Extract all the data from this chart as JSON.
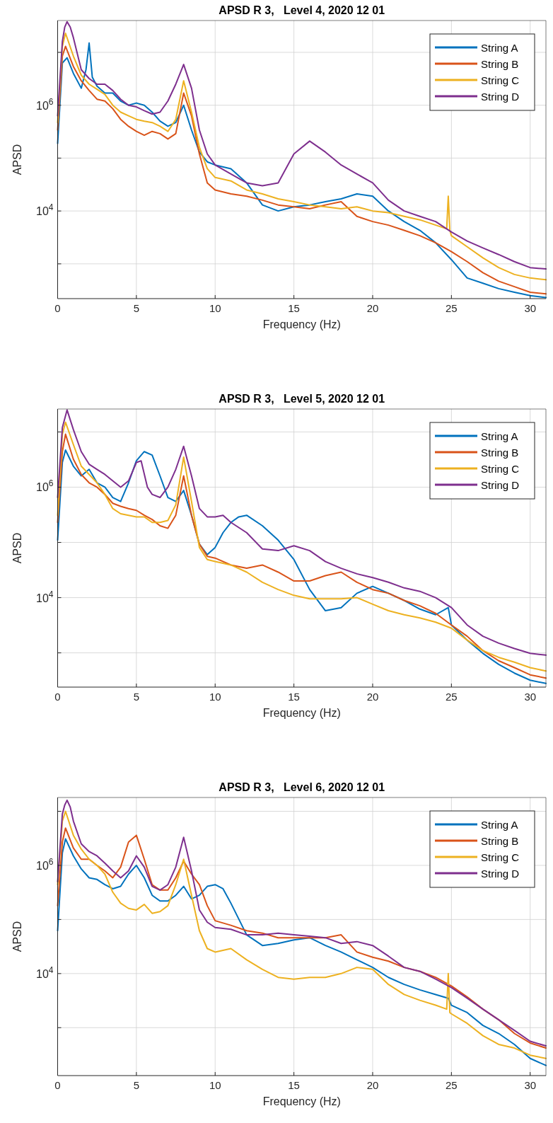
{
  "chart_data": [
    {
      "type": "line",
      "title": "APSD R 3,   Level 4, 2020 12 01",
      "xlabel": "Frequency (Hz)",
      "ylabel": "APSD",
      "log": "y",
      "grid": true,
      "legend": "top right",
      "xlim": [
        0,
        31
      ],
      "ylim": [
        220,
        40000000
      ],
      "xticks": [
        0,
        5,
        10,
        15,
        20,
        25,
        30
      ],
      "yticks": [
        {
          "value": 1000,
          "label": null
        },
        {
          "value": 10000,
          "label": "10$^{4}$"
        },
        {
          "value": 100000,
          "label": null
        },
        {
          "value": 1000000,
          "label": "10$^{6}$"
        },
        {
          "value": 10000000,
          "label": null
        }
      ],
      "series": [
        {
          "name": "String A",
          "color": "#0072bd",
          "x": [
            0,
            0.3,
            0.6,
            1,
            1.5,
            1.8,
            2,
            2.2,
            2.5,
            3,
            3.5,
            4,
            4.5,
            5,
            5.5,
            6,
            6.5,
            7,
            7.5,
            8,
            8.5,
            9,
            9.5,
            10,
            11,
            12,
            13,
            14,
            15,
            16,
            17,
            18,
            19,
            20,
            21,
            22,
            23,
            24,
            25,
            26,
            27,
            28,
            29,
            30,
            31
          ],
          "values": [
            190000,
            6300000,
            7900000,
            4000000,
            2100000,
            4700000,
            15000000,
            3400000,
            2300000,
            1700000,
            1700000,
            1200000,
            1000000,
            1100000,
            1000000,
            740000,
            500000,
            400000,
            470000,
            1000000,
            340000,
            130000,
            85000,
            74000,
            63000,
            34000,
            13000,
            10000,
            12000,
            13000,
            15000,
            17000,
            21000,
            19000,
            10000,
            6300,
            4300,
            2500,
            1200,
            540,
            430,
            340,
            290,
            250,
            230
          ]
        },
        {
          "name": "String B",
          "color": "#d95319",
          "x": [
            0,
            0.3,
            0.5,
            1,
            1.5,
            2,
            2.5,
            3,
            3.5,
            4,
            4.5,
            5,
            5.5,
            6,
            6.5,
            7,
            7.5,
            8,
            8.5,
            9,
            9.5,
            10,
            11,
            12,
            13,
            14,
            15,
            16,
            17,
            18,
            19,
            20,
            21,
            22,
            23,
            24,
            25,
            26,
            27,
            28,
            29,
            30,
            31
          ],
          "values": [
            340000,
            8500000,
            13000000,
            5400000,
            2900000,
            1900000,
            1300000,
            1200000,
            860000,
            540000,
            400000,
            320000,
            270000,
            320000,
            290000,
            230000,
            290000,
            1700000,
            630000,
            120000,
            34000,
            25000,
            21000,
            19000,
            16000,
            13000,
            12000,
            11000,
            13000,
            15000,
            7900,
            6300,
            5400,
            4300,
            3400,
            2500,
            1700,
            1100,
            680,
            470,
            370,
            290,
            270
          ]
        },
        {
          "name": "String C",
          "color": "#edb120",
          "x": [
            0,
            0.3,
            0.5,
            1,
            1.5,
            2,
            2.5,
            3,
            3.5,
            4,
            4.5,
            5,
            5.5,
            6,
            6.5,
            7,
            7.5,
            8,
            8.5,
            9,
            9.5,
            10,
            11,
            12,
            13,
            14,
            15,
            16,
            17,
            18,
            19,
            20,
            21,
            22,
            23,
            24,
            24.7,
            24.8,
            24.9,
            25,
            26,
            27,
            28,
            29,
            30,
            31
          ],
          "values": [
            470000,
            13000000,
            23000000,
            8500000,
            3700000,
            2500000,
            2000000,
            1600000,
            1000000,
            740000,
            630000,
            540000,
            500000,
            470000,
            400000,
            320000,
            540000,
            2900000,
            740000,
            160000,
            63000,
            43000,
            37000,
            25000,
            21000,
            17000,
            15000,
            13000,
            12000,
            11000,
            12000,
            10000,
            9300,
            7900,
            6800,
            5400,
            4600,
            19000,
            4300,
            3400,
            2100,
            1300,
            850,
            630,
            540,
            500
          ]
        },
        {
          "name": "String D",
          "color": "#7e2f8e",
          "x": [
            0,
            0.3,
            0.45,
            0.6,
            0.8,
            1,
            1.5,
            2,
            2.5,
            3,
            3.5,
            4,
            4.5,
            5,
            5.5,
            6,
            6.5,
            7,
            7.5,
            8,
            8.5,
            9,
            9.5,
            10,
            11,
            12,
            13,
            14,
            15,
            16,
            17,
            18,
            19,
            20,
            21,
            22,
            23,
            24,
            25,
            26,
            27,
            28,
            29,
            30,
            31
          ],
          "values": [
            630000,
            16000000,
            30000000,
            38000000,
            30000000,
            19000000,
            4700000,
            3200000,
            2500000,
            2500000,
            1900000,
            1300000,
            1000000,
            930000,
            790000,
            680000,
            740000,
            1200000,
            2500000,
            5900000,
            2100000,
            340000,
            120000,
            74000,
            50000,
            34000,
            30000,
            34000,
            120000,
            210000,
            130000,
            74000,
            50000,
            34000,
            16000,
            10000,
            7900,
            6300,
            4000,
            2700,
            2000,
            1500,
            1100,
            850,
            800
          ]
        }
      ]
    },
    {
      "type": "line",
      "title": "APSD R 3,   Level 5, 2020 12 01",
      "xlabel": "Frequency (Hz)",
      "ylabel": "APSD",
      "log": "y",
      "grid": true,
      "legend": "top right",
      "xlim": [
        0,
        31
      ],
      "ylim": [
        240,
        26000000
      ],
      "xticks": [
        0,
        5,
        10,
        15,
        20,
        25,
        30
      ],
      "yticks": [
        {
          "value": 1000,
          "label": null
        },
        {
          "value": 10000,
          "label": "10$^{4}$"
        },
        {
          "value": 100000,
          "label": null
        },
        {
          "value": 1000000,
          "label": "10$^{6}$"
        },
        {
          "value": 10000000,
          "label": null
        }
      ],
      "series": [
        {
          "name": "String A",
          "color": "#0072bd",
          "x": [
            0,
            0.3,
            0.5,
            1,
            1.5,
            2,
            2.5,
            3,
            3.5,
            4,
            4.5,
            5,
            5.5,
            6,
            6.5,
            7,
            7.5,
            8,
            8.5,
            9,
            9.5,
            10,
            10.5,
            11,
            11.5,
            12,
            13,
            14,
            15,
            16,
            17,
            18,
            19,
            20,
            21,
            22,
            23,
            24,
            24.8,
            25,
            26,
            27,
            28,
            29,
            30,
            31
          ],
          "values": [
            110000,
            2800000,
            4700000,
            2400000,
            1600000,
            2100000,
            1200000,
            1000000,
            650000,
            550000,
            1200000,
            3000000,
            4400000,
            3800000,
            1600000,
            650000,
            550000,
            870000,
            310000,
            93000,
            60000,
            81000,
            150000,
            230000,
            290000,
            310000,
            200000,
            110000,
            49000,
            14000,
            5800,
            6600,
            12000,
            16000,
            12000,
            8900,
            6200,
            4900,
            6600,
            3200,
            1700,
            980,
            620,
            430,
            320,
            280
          ]
        },
        {
          "name": "String B",
          "color": "#d95319",
          "x": [
            0,
            0.3,
            0.5,
            1,
            1.5,
            2,
            2.5,
            3,
            3.5,
            4,
            4.5,
            5,
            5.5,
            6,
            6.5,
            7,
            7.5,
            8,
            8.5,
            9,
            9.5,
            10,
            11,
            12,
            13,
            14,
            15,
            16,
            17,
            18,
            19,
            20,
            21,
            22,
            23,
            24,
            25,
            26,
            27,
            28,
            29,
            30,
            31
          ],
          "values": [
            230000,
            4400000,
            9100000,
            3200000,
            1700000,
            1200000,
            1000000,
            740000,
            510000,
            450000,
            410000,
            380000,
            310000,
            260000,
            200000,
            180000,
            310000,
            1600000,
            310000,
            93000,
            56000,
            52000,
            39000,
            34000,
            39000,
            29000,
            20000,
            20000,
            25000,
            29000,
            19000,
            14000,
            12000,
            8900,
            7100,
            5200,
            3200,
            2000,
            1100,
            720,
            540,
            400,
            350
          ]
        },
        {
          "name": "String C",
          "color": "#edb120",
          "x": [
            0,
            0.3,
            0.5,
            1,
            1.5,
            2,
            2.5,
            3,
            3.5,
            4,
            4.5,
            5,
            5.5,
            6,
            6.5,
            7,
            7.5,
            8,
            8.5,
            9,
            9.5,
            10,
            11,
            12,
            13,
            14,
            15,
            16,
            17,
            18,
            19,
            20,
            21,
            22,
            23,
            24,
            25,
            26,
            27,
            28,
            29,
            30,
            31
          ],
          "values": [
            310000,
            9100000,
            15000000,
            5900000,
            2400000,
            1700000,
            1200000,
            740000,
            410000,
            330000,
            310000,
            290000,
            290000,
            230000,
            230000,
            250000,
            480000,
            3500000,
            550000,
            81000,
            49000,
            45000,
            39000,
            29000,
            19000,
            14000,
            11000,
            9500,
            9500,
            9500,
            10000,
            7600,
            5800,
            4900,
            4300,
            3600,
            2800,
            1700,
            1100,
            830,
            680,
            540,
            470
          ]
        },
        {
          "name": "String D",
          "color": "#7e2f8e",
          "x": [
            0,
            0.3,
            0.6,
            1,
            1.5,
            2,
            2.5,
            3,
            3.5,
            4,
            4.5,
            5,
            5.3,
            5.7,
            6,
            6.5,
            7,
            7.5,
            8,
            8.5,
            9,
            9.5,
            10,
            10.5,
            11,
            12,
            13,
            14,
            15,
            16,
            17,
            18,
            19,
            20,
            21,
            22,
            23,
            24,
            25,
            26,
            27,
            28,
            29,
            30,
            31
          ],
          "values": [
            650000,
            12000000,
            25000000,
            11000000,
            4400000,
            2600000,
            2100000,
            1700000,
            1300000,
            1000000,
            1300000,
            2800000,
            3000000,
            1000000,
            740000,
            650000,
            1000000,
            2100000,
            5500000,
            1600000,
            410000,
            290000,
            290000,
            310000,
            230000,
            150000,
            76000,
            71000,
            87000,
            71000,
            45000,
            34000,
            27000,
            23000,
            19000,
            15000,
            13000,
            10000,
            6600,
            3200,
            2000,
            1500,
            1200,
            980,
            910
          ]
        }
      ]
    },
    {
      "type": "line",
      "title": "APSD R 3,   Level 6, 2020 12 01",
      "xlabel": "Frequency (Hz)",
      "ylabel": "APSD",
      "log": "y",
      "grid": true,
      "legend": "top right",
      "xlim": [
        0,
        31
      ],
      "ylim": [
        130,
        18000000
      ],
      "xticks": [
        0,
        5,
        10,
        15,
        20,
        25,
        30
      ],
      "yticks": [
        {
          "value": 1000,
          "label": null
        },
        {
          "value": 10000,
          "label": "10$^{4}$"
        },
        {
          "value": 100000,
          "label": null
        },
        {
          "value": 1000000,
          "label": "10$^{6}$"
        },
        {
          "value": 10000000,
          "label": null
        }
      ],
      "series": [
        {
          "name": "String A",
          "color": "#0072bd",
          "x": [
            0,
            0.3,
            0.5,
            1,
            1.5,
            2,
            2.5,
            3,
            3.5,
            4,
            4.5,
            5,
            5.5,
            6,
            6.5,
            7,
            7.5,
            8,
            8.5,
            9,
            9.5,
            10,
            10.5,
            11,
            12,
            13,
            14,
            15,
            16,
            17,
            18,
            19,
            20,
            21,
            22,
            23,
            24,
            24.8,
            25,
            26,
            27,
            28,
            29,
            30,
            31
          ],
          "values": [
            62000,
            1700000,
            3100000,
            1500000,
            860000,
            590000,
            550000,
            440000,
            370000,
            410000,
            690000,
            1000000,
            590000,
            280000,
            220000,
            220000,
            280000,
            410000,
            240000,
            280000,
            410000,
            440000,
            370000,
            200000,
            52000,
            33000,
            36000,
            42000,
            46000,
            33000,
            25000,
            18000,
            13000,
            8500,
            6300,
            5000,
            4100,
            3500,
            2600,
            1900,
            1100,
            780,
            490,
            270,
            200
          ]
        },
        {
          "name": "String B",
          "color": "#d95319",
          "x": [
            0,
            0.3,
            0.5,
            1,
            1.5,
            2,
            2.5,
            3,
            3.5,
            4,
            4.5,
            5,
            5.5,
            6,
            6.5,
            7,
            7.5,
            8,
            8.5,
            9,
            9.5,
            10,
            11,
            12,
            13,
            14,
            15,
            16,
            17,
            18,
            19,
            20,
            21,
            22,
            23,
            24,
            25,
            26,
            27,
            28,
            29,
            30,
            31
          ],
          "values": [
            180000,
            2700000,
            4900000,
            2100000,
            1300000,
            1300000,
            1000000,
            790000,
            590000,
            930000,
            2700000,
            3600000,
            1300000,
            440000,
            350000,
            350000,
            590000,
            1200000,
            690000,
            440000,
            180000,
            95000,
            78000,
            62000,
            56000,
            46000,
            46000,
            46000,
            46000,
            52000,
            25000,
            20000,
            17000,
            13000,
            11000,
            8500,
            5900,
            3700,
            2200,
            1400,
            780,
            520,
            420
          ]
        },
        {
          "name": "String C",
          "color": "#edb120",
          "x": [
            0,
            0.3,
            0.5,
            1,
            1.5,
            2,
            2.5,
            3,
            3.5,
            4,
            4.5,
            5,
            5.5,
            6,
            6.5,
            7,
            7.5,
            8,
            8.5,
            9,
            9.5,
            10,
            11,
            12,
            13,
            14,
            15,
            16,
            17,
            18,
            19,
            20,
            21,
            22,
            23,
            24,
            24.7,
            24.8,
            24.9,
            25,
            26,
            27,
            28,
            29,
            30,
            31
          ],
          "values": [
            440000,
            6600000,
            10000000,
            3600000,
            2000000,
            1300000,
            1000000,
            690000,
            320000,
            200000,
            160000,
            150000,
            190000,
            130000,
            140000,
            180000,
            440000,
            1300000,
            280000,
            62000,
            29000,
            25000,
            29000,
            18000,
            12000,
            8500,
            7900,
            8500,
            8500,
            10000,
            13000,
            12000,
            6300,
            4100,
            3200,
            2600,
            2200,
            10000,
            1900,
            1800,
            1200,
            710,
            490,
            420,
            310,
            270
          ]
        },
        {
          "name": "String D",
          "color": "#7e2f8e",
          "x": [
            0,
            0.3,
            0.45,
            0.6,
            0.8,
            1,
            1.5,
            2,
            2.5,
            3,
            3.5,
            4,
            4.5,
            5,
            5.5,
            6,
            6.5,
            7,
            7.5,
            8,
            8.5,
            9,
            9.5,
            10,
            11,
            12,
            13,
            14,
            15,
            16,
            17,
            18,
            19,
            20,
            21,
            22,
            23,
            24,
            25,
            26,
            27,
            28,
            29,
            30,
            31
          ],
          "values": [
            500000,
            8900000,
            13000000,
            16000000,
            12000000,
            6600000,
            2500000,
            1800000,
            1500000,
            1100000,
            790000,
            590000,
            790000,
            1500000,
            930000,
            410000,
            350000,
            440000,
            930000,
            3300000,
            790000,
            150000,
            89000,
            71000,
            66000,
            52000,
            52000,
            56000,
            52000,
            49000,
            46000,
            36000,
            39000,
            33000,
            21000,
            13000,
            11000,
            7900,
            5500,
            3500,
            2200,
            1400,
            890,
            560,
            460
          ]
        }
      ]
    }
  ]
}
